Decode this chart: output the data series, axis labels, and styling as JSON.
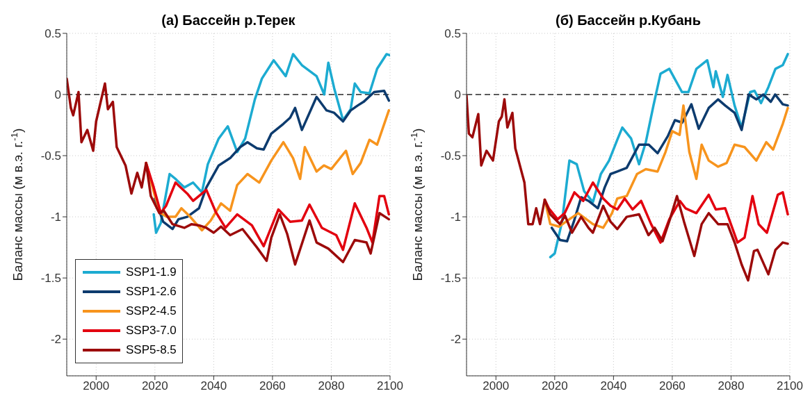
{
  "chart_data": [
    {
      "type": "line",
      "title": "(а) Бассейн р.Терек",
      "ylabel": "Баланс массы (м в.э. г.$^{-1}$)",
      "xlim": [
        1990,
        2100
      ],
      "xticks": [
        2000,
        2020,
        2040,
        2060,
        2080,
        2100
      ],
      "ylim": [
        -2.3,
        0.5
      ],
      "yticks": [
        -2,
        -1.5,
        -1,
        -0.5,
        0,
        0.5
      ],
      "grid": true,
      "legend": "bottom left",
      "marker": "none",
      "line_style": "solid",
      "ref_lines": [
        {
          "axis": "y",
          "value": 0,
          "color": "#000000",
          "line_style": "dashed"
        }
      ],
      "series": [
        {
          "name": "SSP1-1.9",
          "color": "#1cabd1",
          "x": [
            2019.6,
            2020.4,
            2022,
            2025,
            2027,
            2030,
            2033,
            2036,
            2038,
            2041.7,
            2044.8,
            2048,
            2050.7,
            2054,
            2056.4,
            2060.4,
            2064.5,
            2067,
            2070,
            2075,
            2077.6,
            2079,
            2081,
            2084,
            2086.6,
            2088,
            2090,
            2093,
            2095.6,
            2098.8,
            2100
          ],
          "values": [
            -0.98,
            -1.13,
            -1.05,
            -0.65,
            -0.69,
            -0.76,
            -0.72,
            -0.8,
            -0.57,
            -0.36,
            -0.26,
            -0.47,
            -0.36,
            -0.04,
            0.13,
            0.28,
            0.15,
            0.33,
            0.24,
            0.15,
            0,
            0.26,
            0.05,
            -0.21,
            -0.12,
            0.09,
            0.02,
            0.01,
            0.21,
            0.33,
            0.32
          ]
        },
        {
          "name": "SSP1-2.6",
          "color": "#0d3b6e",
          "x": [
            2020,
            2022.8,
            2026,
            2028,
            2031,
            2035,
            2037.5,
            2041.7,
            2045.6,
            2049,
            2051.5,
            2054.7,
            2057,
            2059.6,
            2063.7,
            2066,
            2067.7,
            2070,
            2075,
            2078.4,
            2081,
            2084,
            2086.6,
            2089,
            2091,
            2094.6,
            2098,
            2099.6
          ],
          "values": [
            -0.85,
            -1.04,
            -1.1,
            -1.02,
            -1.0,
            -0.93,
            -0.76,
            -0.58,
            -0.52,
            -0.43,
            -0.39,
            -0.44,
            -0.45,
            -0.32,
            -0.24,
            -0.19,
            -0.11,
            -0.29,
            -0.02,
            -0.13,
            -0.15,
            -0.22,
            -0.13,
            -0.09,
            -0.06,
            0.02,
            0.03,
            -0.05
          ]
        },
        {
          "name": "SSP2-4.5",
          "color": "#f7941d",
          "x": [
            2017,
            2020,
            2022,
            2024,
            2027,
            2029,
            2032,
            2036,
            2039,
            2042.5,
            2045.6,
            2048,
            2051.5,
            2055.5,
            2059.6,
            2063.7,
            2067,
            2069.4,
            2071,
            2075,
            2077.5,
            2080,
            2085,
            2087.3,
            2090,
            2093,
            2095.6,
            2099.6
          ],
          "values": [
            -0.56,
            -0.83,
            -0.97,
            -1.0,
            -1.0,
            -0.93,
            -1.0,
            -1.11,
            -1.03,
            -0.89,
            -0.95,
            -0.74,
            -0.65,
            -0.72,
            -0.54,
            -0.39,
            -0.52,
            -0.69,
            -0.43,
            -0.63,
            -0.58,
            -0.61,
            -0.46,
            -0.65,
            -0.56,
            -0.37,
            -0.41,
            -0.13
          ]
        },
        {
          "name": "SSP3-7.0",
          "color": "#e3000f",
          "x": [
            2017,
            2019.6,
            2022,
            2023.8,
            2027,
            2031,
            2033,
            2037.5,
            2040.7,
            2044,
            2048,
            2053,
            2057,
            2062,
            2066,
            2070,
            2072.6,
            2076.8,
            2081.7,
            2084,
            2088,
            2092,
            2094,
            2096.4,
            2098,
            2099.6
          ],
          "values": [
            -0.56,
            -0.76,
            -0.97,
            -0.91,
            -0.72,
            -0.81,
            -0.87,
            -0.78,
            -0.96,
            -1.09,
            -0.98,
            -1.07,
            -1.24,
            -0.94,
            -1.04,
            -1.03,
            -0.9,
            -1.09,
            -1.15,
            -1.27,
            -0.89,
            -1.09,
            -1.21,
            -0.83,
            -0.83,
            -0.98
          ]
        },
        {
          "name": "SSP5-8.5",
          "color": "#9c0a0a",
          "x": [
            1990,
            1991.4,
            1992.2,
            1994,
            1995,
            1997,
            1999,
            2000,
            2003,
            2004,
            2005.7,
            2007,
            2010,
            2012,
            2014,
            2015.5,
            2017,
            2018.6,
            2021.5,
            2023,
            2026,
            2030,
            2032.5,
            2035,
            2037.5,
            2040,
            2042.5,
            2045.6,
            2049.8,
            2054.7,
            2058,
            2059.6,
            2062.5,
            2065,
            2067.7,
            2072.6,
            2075,
            2079,
            2084,
            2088,
            2092,
            2093.4,
            2096.4,
            2099.6
          ],
          "values": [
            0.13,
            -0.11,
            -0.17,
            0.02,
            -0.39,
            -0.29,
            -0.46,
            -0.22,
            0.09,
            -0.12,
            -0.06,
            -0.43,
            -0.58,
            -0.81,
            -0.64,
            -0.76,
            -0.56,
            -0.83,
            -0.97,
            -0.95,
            -1.06,
            -1.09,
            -1.06,
            -1.07,
            -1.09,
            -1.13,
            -1.08,
            -1.15,
            -1.1,
            -1.25,
            -1.36,
            -1.17,
            -0.98,
            -1.14,
            -1.39,
            -1.03,
            -1.21,
            -1.26,
            -1.37,
            -1.19,
            -1.21,
            -1.3,
            -0.97,
            -1.02
          ]
        }
      ]
    },
    {
      "type": "line",
      "title": "(б) Бассейн р.Кубань",
      "ylabel": "Баланс массы (м в.э. г.$^{-1}$)",
      "xlim": [
        1990,
        2100
      ],
      "xticks": [
        2000,
        2020,
        2040,
        2060,
        2080,
        2100
      ],
      "ylim": [
        -2.3,
        0.5
      ],
      "yticks": [
        -2,
        -1.5,
        -1,
        -0.5,
        0,
        0.5
      ],
      "grid": true,
      "legend": false,
      "marker": "none",
      "line_style": "solid",
      "ref_lines": [
        {
          "axis": "y",
          "value": 0,
          "color": "#000000",
          "line_style": "dashed"
        }
      ],
      "series": [
        {
          "color": "#1cabd1",
          "x": [
            2018.5,
            2020,
            2022.5,
            2025,
            2027.5,
            2030,
            2033,
            2035.7,
            2038.5,
            2041.3,
            2043,
            2046,
            2048.7,
            2051,
            2053.6,
            2056,
            2059,
            2063.3,
            2065.5,
            2068.2,
            2071.9,
            2074,
            2074.8,
            2077.2,
            2078.8,
            2081.2,
            2083.6,
            2086.5,
            2088,
            2090.2,
            2092.7,
            2095.1,
            2097.6,
            2099.3
          ],
          "values": [
            -1.33,
            -1.3,
            -1.04,
            -0.54,
            -0.57,
            -0.79,
            -0.88,
            -0.65,
            -0.54,
            -0.37,
            -0.27,
            -0.36,
            -0.57,
            -0.39,
            -0.09,
            0.17,
            0.21,
            0.02,
            0.02,
            0.21,
            0.28,
            0.06,
            0.19,
            -0.02,
            0.16,
            -0.09,
            -0.27,
            0.02,
            0.03,
            -0.07,
            0.06,
            0.21,
            0.24,
            0.33
          ]
        },
        {
          "color": "#0d3b6e",
          "x": [
            2019,
            2021.8,
            2024.2,
            2026.5,
            2029,
            2031.5,
            2034.7,
            2037,
            2039,
            2041.3,
            2044.5,
            2048.7,
            2052,
            2055,
            2058.5,
            2060.9,
            2063.4,
            2066.5,
            2069,
            2072.4,
            2075.6,
            2078,
            2081.2,
            2083.6,
            2086,
            2088.6,
            2091,
            2093.5,
            2095,
            2097.6,
            2099.3
          ],
          "values": [
            -1.09,
            -1.19,
            -1.2,
            -1.04,
            -0.84,
            -0.87,
            -0.93,
            -0.76,
            -0.65,
            -0.63,
            -0.6,
            -0.41,
            -0.41,
            -0.48,
            -0.34,
            -0.21,
            -0.23,
            -0.08,
            -0.28,
            -0.11,
            -0.04,
            -0.09,
            -0.15,
            -0.29,
            0.0,
            -0.04,
            0.0,
            -0.06,
            0.0,
            -0.08,
            -0.09
          ]
        },
        {
          "color": "#f7941d",
          "x": [
            2016.6,
            2018.5,
            2021.5,
            2025,
            2028,
            2033,
            2036.5,
            2039.5,
            2041.3,
            2044.5,
            2048,
            2051,
            2055,
            2057.7,
            2060,
            2062.5,
            2063.8,
            2065.8,
            2068.2,
            2070,
            2072.4,
            2075.6,
            2078.5,
            2081.2,
            2084.6,
            2088.6,
            2092,
            2094.3,
            2097.6,
            2099.3
          ],
          "values": [
            -0.86,
            -1.06,
            -1.08,
            -1.02,
            -0.97,
            -1.06,
            -1.09,
            -0.97,
            -0.85,
            -0.83,
            -0.65,
            -0.61,
            -0.63,
            -0.47,
            -0.3,
            -0.33,
            -0.09,
            -0.47,
            -0.69,
            -0.41,
            -0.54,
            -0.59,
            -0.56,
            -0.41,
            -0.43,
            -0.54,
            -0.39,
            -0.45,
            -0.24,
            -0.11
          ]
        },
        {
          "color": "#e3000f",
          "x": [
            2016.6,
            2018,
            2021,
            2023.4,
            2026.7,
            2029.7,
            2033,
            2036.5,
            2039,
            2041.3,
            2043.8,
            2046.5,
            2049.4,
            2052.8,
            2056,
            2059,
            2062.6,
            2064.5,
            2068.2,
            2072.4,
            2074.8,
            2078,
            2082.2,
            2084.6,
            2087.3,
            2089.4,
            2092.2,
            2095.9,
            2097.6,
            2099.3
          ],
          "values": [
            -0.86,
            -0.93,
            -1.02,
            -0.97,
            -0.8,
            -0.87,
            -0.72,
            -0.85,
            -0.91,
            -0.94,
            -0.85,
            -0.94,
            -0.87,
            -1.06,
            -1.21,
            -1.02,
            -0.87,
            -0.93,
            -0.97,
            -0.82,
            -0.94,
            -0.93,
            -1.21,
            -1.17,
            -0.83,
            -1.06,
            -1.13,
            -0.82,
            -0.8,
            -0.98
          ]
        },
        {
          "color": "#9c0a0a",
          "x": [
            1990,
            1990.8,
            1992,
            1994,
            1995,
            1996.8,
            1999,
            2001,
            2002,
            2002.9,
            2003.9,
            2005.6,
            2006.6,
            2009.7,
            2011,
            2012.5,
            2013.7,
            2015,
            2016.6,
            2018.5,
            2021.8,
            2023.5,
            2025.9,
            2029,
            2031.5,
            2033,
            2036.5,
            2039,
            2041.3,
            2044.5,
            2048.7,
            2051.9,
            2054,
            2056.7,
            2059.2,
            2061.6,
            2064,
            2067.5,
            2070,
            2072.4,
            2075.6,
            2078.8,
            2081.2,
            2083.6,
            2085.8,
            2087.8,
            2089,
            2092.7,
            2095.1,
            2097.6,
            2099.3
          ],
          "values": [
            -0.01,
            -0.32,
            -0.35,
            -0.16,
            -0.58,
            -0.46,
            -0.54,
            -0.22,
            -0.18,
            -0.04,
            -0.27,
            -0.15,
            -0.44,
            -0.72,
            -1.06,
            -1.06,
            -0.93,
            -1.06,
            -0.86,
            -0.98,
            -1.06,
            -0.99,
            -1.13,
            -1.0,
            -1.09,
            -1.13,
            -0.91,
            -1.04,
            -1.1,
            -1.0,
            -0.98,
            -1.15,
            -1.09,
            -1.2,
            -1.02,
            -0.83,
            -1.04,
            -1.32,
            -1.06,
            -0.97,
            -1.06,
            -1.06,
            -1.21,
            -1.39,
            -1.52,
            -1.28,
            -1.27,
            -1.47,
            -1.27,
            -1.21,
            -1.22
          ]
        }
      ]
    }
  ]
}
